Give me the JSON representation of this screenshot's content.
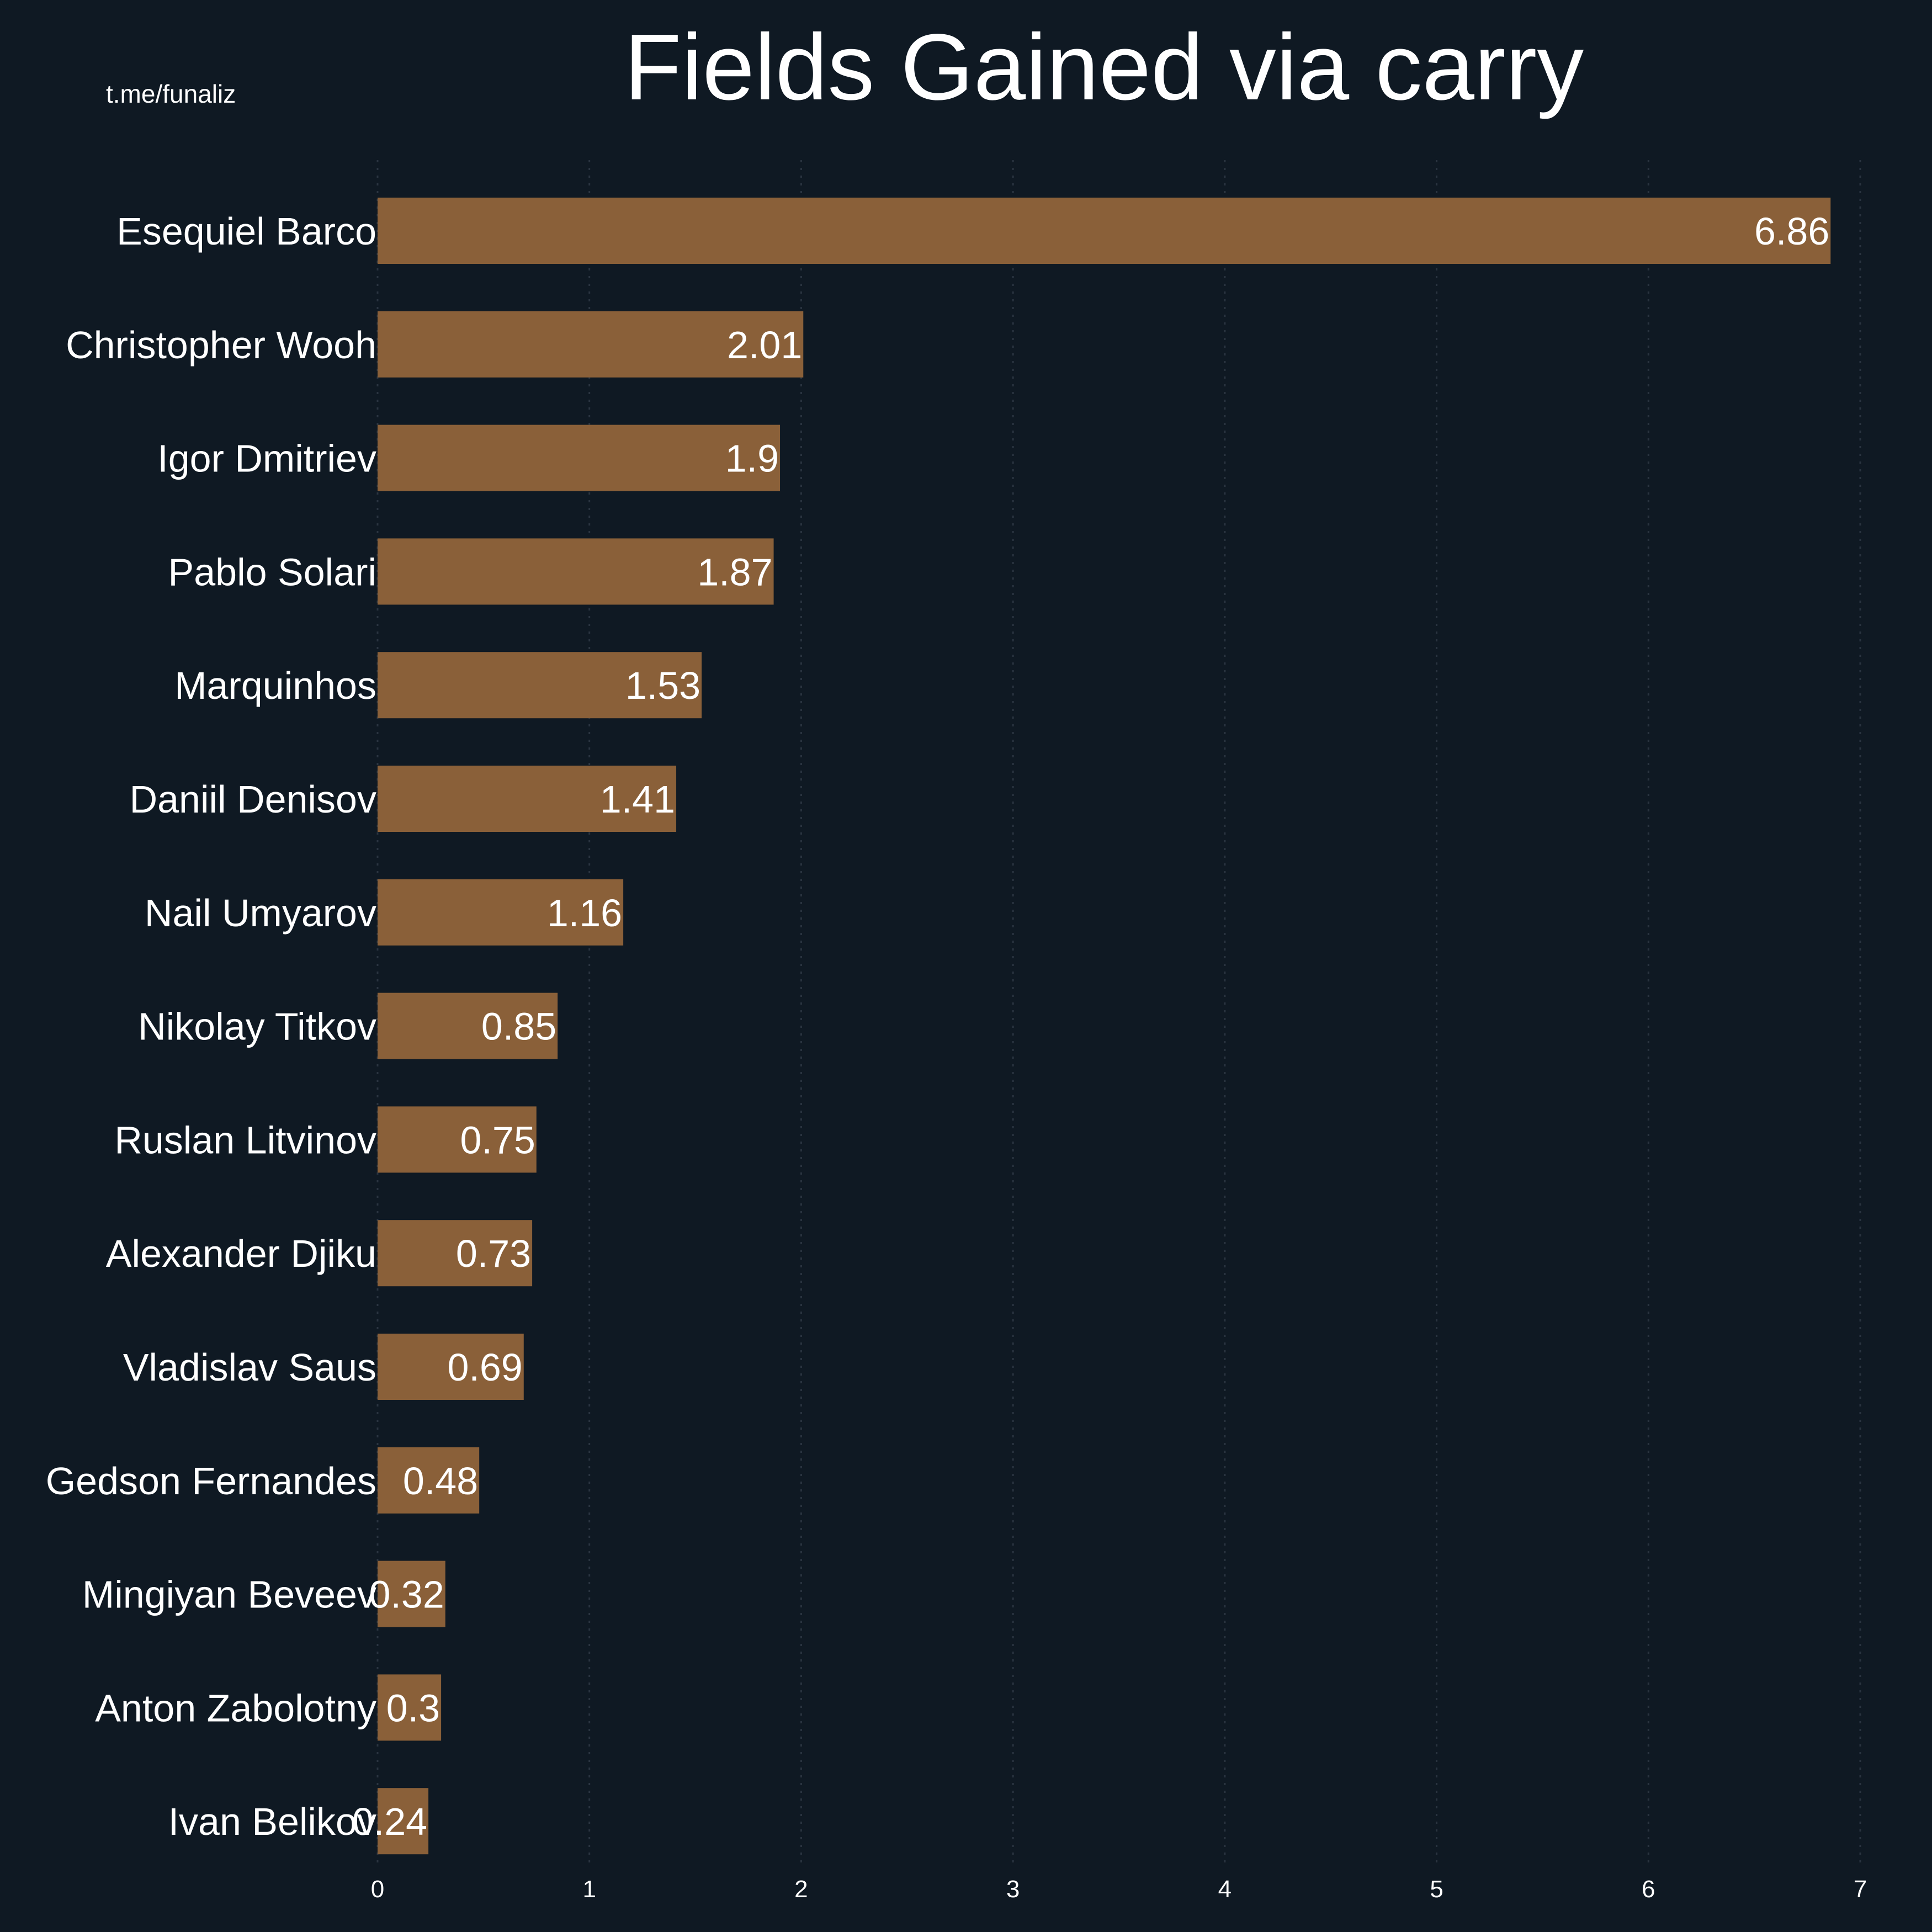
{
  "watermark": "t.me/funaliz",
  "colors": {
    "background": "#0f1923",
    "bar": "#8a6039",
    "text": "#ffffff",
    "grid": "#2a3440"
  },
  "chart_data": {
    "type": "bar",
    "orientation": "horizontal",
    "title": "Fields Gained via carry",
    "xlabel": "",
    "ylabel": "",
    "xlim": [
      0,
      7
    ],
    "xticks": [
      "0",
      "1",
      "2",
      "3",
      "4",
      "5",
      "6",
      "7"
    ],
    "grid": true,
    "categories": [
      "Esequiel Barco",
      "Christopher Wooh",
      "Igor Dmitriev",
      "Pablo Solari",
      "Marquinhos",
      "Daniil Denisov",
      "Nail Umyarov",
      "Nikolay Titkov",
      "Ruslan Litvinov",
      "Alexander Djiku",
      "Vladislav Saus",
      "Gedson Fernandes",
      "Mingiyan Beveev",
      "Anton Zabolotny",
      "Ivan Belikov"
    ],
    "values": [
      6.86,
      2.01,
      1.9,
      1.87,
      1.53,
      1.41,
      1.16,
      0.85,
      0.75,
      0.73,
      0.69,
      0.48,
      0.32,
      0.3,
      0.24
    ],
    "value_labels": [
      "6.86",
      "2.01",
      "1.9",
      "1.87",
      "1.53",
      "1.41",
      "1.16",
      "0.85",
      "0.75",
      "0.73",
      "0.69",
      "0.48",
      "0.32",
      "0.3",
      "0.24"
    ]
  }
}
